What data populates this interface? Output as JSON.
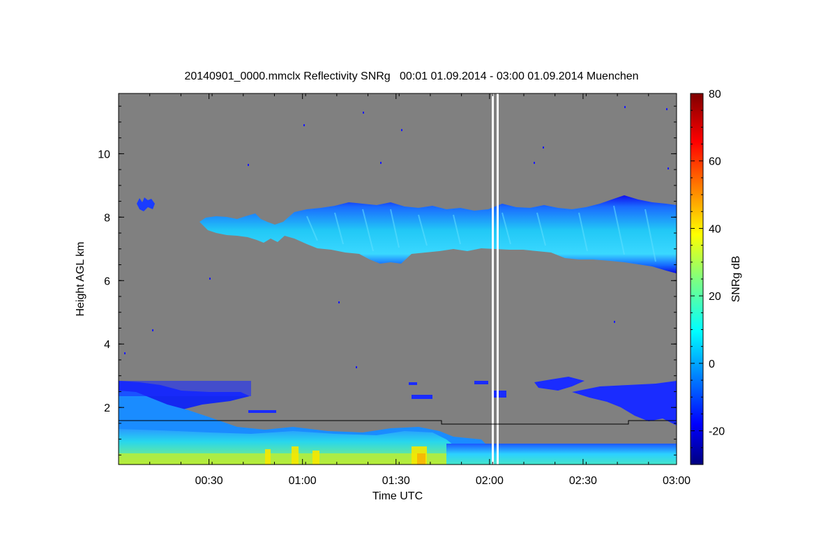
{
  "chart_data": {
    "type": "heatmap",
    "title": "20140901_0000.mmclx Reflectivity SNRg   00:01 01.09.2014 - 03:00 01.09.2014 Muenchen",
    "xlabel": "Time UTC",
    "ylabel": "Height AGL km",
    "colorbar_label": "SNRg dB",
    "xlim": [
      "00:01",
      "03:00"
    ],
    "ylim": [
      0.2,
      11.9
    ],
    "x_ticks": [
      "00:30",
      "01:00",
      "01:30",
      "02:00",
      "02:30",
      "03:00"
    ],
    "y_ticks": [
      2,
      4,
      6,
      8,
      10
    ],
    "colorbar_range": [
      -30,
      80
    ],
    "colorbar_ticks": [
      -20,
      0,
      20,
      40,
      60,
      80
    ],
    "colormap": "jet",
    "background_color": "#808080",
    "features": [
      {
        "name": "upper cloud layer",
        "time_start": "00:23",
        "time_end": "03:00",
        "base_km": 6.5,
        "top_km": 8.8,
        "snr_range_db": [
          -20,
          12
        ]
      },
      {
        "name": "small upper cloud",
        "time_start": "00:06",
        "time_end": "00:13",
        "base_km": 8.2,
        "top_km": 8.6,
        "snr_range_db": [
          -20,
          -10
        ]
      },
      {
        "name": "boundary layer echo",
        "time_start": "00:01",
        "time_end": "03:00",
        "base_km": 0.2,
        "top_km": 2.8,
        "snr_range_db": [
          -20,
          40
        ]
      },
      {
        "name": "mid-level patches",
        "time_start": "01:55",
        "time_end": "03:00",
        "base_km": 2.0,
        "top_km": 2.9,
        "snr_range_db": [
          -20,
          0
        ]
      }
    ],
    "data_gaps": [
      "02:02",
      "02:04"
    ],
    "boundary_line_km": [
      {
        "time_start": "00:01",
        "time_end": "01:45",
        "height_km": 1.6
      },
      {
        "time_start": "01:45",
        "time_end": "02:46",
        "height_km": 1.5
      },
      {
        "time_start": "02:46",
        "time_end": "03:00",
        "height_km": 1.6
      }
    ]
  }
}
